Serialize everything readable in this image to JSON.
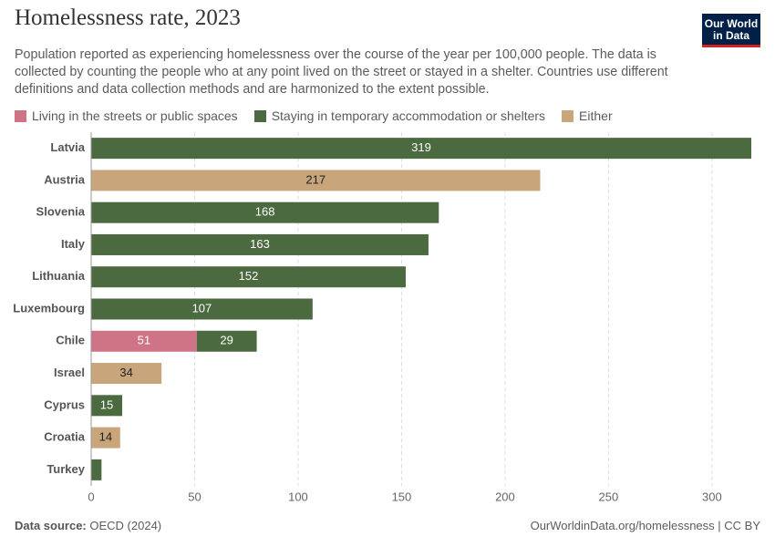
{
  "chart_data": {
    "type": "stacked-bar-horizontal",
    "title": "Homelessness rate, 2023",
    "subtitle": "Population reported as experiencing homelessness over the course of the year per 100,000 people. The data is collected by counting the people who at any point lived on the street or stayed in a shelter. Countries use different definitions and data collection methods and are harmonized to the extent possible.",
    "logo": "Our World in Data",
    "source_label": "Data source:",
    "source": "OECD (2024)",
    "note": "OurWorldinData.org/homelessness | CC BY",
    "categories": [
      "Latvia",
      "Austria",
      "Slovenia",
      "Italy",
      "Lithuania",
      "Luxembourg",
      "Chile",
      "Israel",
      "Cyprus",
      "Croatia",
      "Turkey"
    ],
    "series": [
      {
        "name": "Living in the streets or public spaces",
        "color": "#cf7387",
        "values": [
          null,
          null,
          null,
          null,
          null,
          null,
          51,
          null,
          null,
          null,
          null
        ]
      },
      {
        "name": "Staying in temporary accommodation or shelters",
        "color": "#4b6a3f",
        "values": [
          319,
          null,
          168,
          163,
          152,
          107,
          29,
          null,
          15,
          null,
          5
        ]
      },
      {
        "name": "Either",
        "color": "#c9a57b",
        "values": [
          null,
          217,
          null,
          null,
          null,
          null,
          null,
          34,
          null,
          14,
          null
        ]
      }
    ],
    "xlim": [
      0,
      319
    ],
    "xticks": [
      0,
      50,
      100,
      150,
      200,
      250,
      300
    ],
    "grid": true
  }
}
